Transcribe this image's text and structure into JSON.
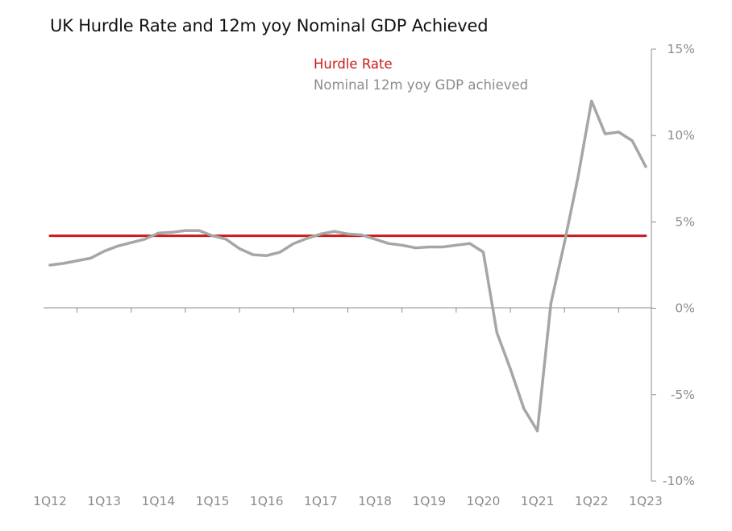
{
  "chart_data": {
    "type": "line",
    "title": "UK Hurdle Rate and 12m yoy Nominal GDP Achieved",
    "xlabel": "",
    "ylabel": "",
    "categories": [
      "1Q12",
      "2Q12",
      "3Q12",
      "4Q12",
      "1Q13",
      "2Q13",
      "3Q13",
      "4Q13",
      "1Q14",
      "2Q14",
      "3Q14",
      "4Q14",
      "1Q15",
      "2Q15",
      "3Q15",
      "4Q15",
      "1Q16",
      "2Q16",
      "3Q16",
      "4Q16",
      "1Q17",
      "2Q17",
      "3Q17",
      "4Q17",
      "1Q18",
      "2Q18",
      "3Q18",
      "4Q18",
      "1Q19",
      "2Q19",
      "3Q19",
      "4Q19",
      "1Q20",
      "2Q20",
      "3Q20",
      "4Q20",
      "1Q21",
      "2Q21",
      "3Q21",
      "4Q21",
      "1Q22",
      "2Q22",
      "3Q22",
      "4Q22",
      "1Q23"
    ],
    "x_tick_labels": [
      "1Q12",
      "1Q13",
      "1Q14",
      "1Q15",
      "1Q16",
      "1Q17",
      "1Q18",
      "1Q19",
      "1Q20",
      "1Q21",
      "1Q22",
      "1Q23"
    ],
    "y_tick_labels": [
      "15%",
      "10%",
      "5%",
      "0%",
      "-5%",
      "-10%"
    ],
    "y_ticks": [
      15,
      10,
      5,
      0,
      -5,
      -10
    ],
    "ylim": [
      -10,
      15
    ],
    "grid": false,
    "legend_position": "top-center",
    "series": [
      {
        "name": "Hurdle Rate",
        "color": "#cc1a1a",
        "values": [
          4.2,
          4.2,
          4.2,
          4.2,
          4.2,
          4.2,
          4.2,
          4.2,
          4.2,
          4.2,
          4.2,
          4.2,
          4.2,
          4.2,
          4.2,
          4.2,
          4.2,
          4.2,
          4.2,
          4.2,
          4.2,
          4.2,
          4.2,
          4.2,
          4.2,
          4.2,
          4.2,
          4.2,
          4.2,
          4.2,
          4.2,
          4.2,
          4.2,
          4.2,
          4.2,
          4.2,
          4.2,
          4.2,
          4.2,
          4.2,
          4.2,
          4.2,
          4.2,
          4.2,
          4.2
        ]
      },
      {
        "name": "Nominal 12m yoy GDP achieved",
        "color": "#a6a6a6",
        "values": [
          2.5,
          2.6,
          2.75,
          2.9,
          3.3,
          3.6,
          3.8,
          4.0,
          4.35,
          4.4,
          4.5,
          4.5,
          4.2,
          4.0,
          3.45,
          3.1,
          3.05,
          3.25,
          3.75,
          4.05,
          4.3,
          4.45,
          4.3,
          4.25,
          4.0,
          3.75,
          3.65,
          3.5,
          3.55,
          3.55,
          3.65,
          3.75,
          3.25,
          -1.4,
          -3.5,
          -5.8,
          -7.1,
          0.3,
          3.8,
          7.6,
          12.0,
          10.1,
          10.2,
          9.7,
          8.2
        ]
      }
    ]
  }
}
